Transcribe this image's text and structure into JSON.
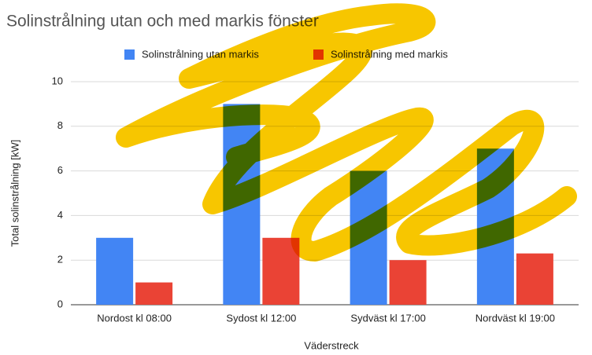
{
  "chart_data": {
    "type": "bar",
    "title": "Solinstrålning utan och med markis fönster",
    "x_label": "Väderstreck",
    "y_label": "Total solinstrålning [kW]",
    "categories": [
      "Nordost kl 08:00",
      "Sydost kl 12:00",
      "Sydväst kl 17:00",
      "Nordväst kl 19:00"
    ],
    "series": [
      {
        "name": "Solinstrålning utan markis",
        "color": "#4285f4",
        "values": [
          3,
          9,
          6,
          7
        ]
      },
      {
        "name": "Solinstrålning med markis",
        "color": "#ea4335",
        "values": [
          1,
          3,
          2,
          2.3
        ]
      }
    ],
    "ylim": [
      0,
      10
    ],
    "yticks": [
      0,
      2,
      4,
      6,
      8,
      10
    ],
    "grid": true,
    "legend": "top"
  }
}
